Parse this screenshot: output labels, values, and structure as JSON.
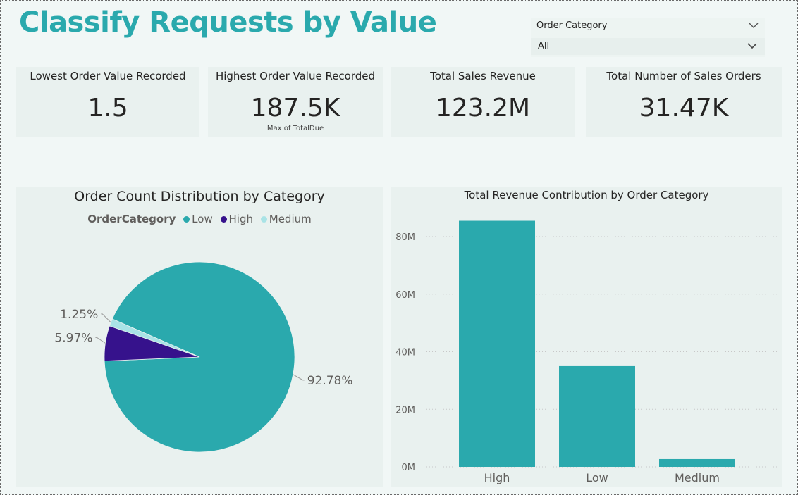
{
  "page": {
    "title": "Classify Requests by Value"
  },
  "slicer": {
    "label": "Order Category",
    "value": "All"
  },
  "cards": [
    {
      "label": "Lowest Order Value Recorded",
      "value": "1.5",
      "sub": ""
    },
    {
      "label": "Highest Order Value Recorded",
      "value": "187.5K",
      "sub": "Max of TotalDue"
    },
    {
      "label": "Total Sales Revenue",
      "value": "123.2M",
      "sub": ""
    },
    {
      "label": "Total Number of Sales Orders",
      "value": "31.47K",
      "sub": ""
    }
  ],
  "colors": {
    "accent": "#2aa9ad",
    "low": "#2aa9ad",
    "high": "#36128c",
    "medium": "#a9e3e6",
    "bar": "#2aa9ad"
  },
  "chart_data": [
    {
      "type": "pie",
      "title": "Order Count Distribution by Category",
      "legend_title": "OrderCategory",
      "legend_placement": "top",
      "categories": [
        "Low",
        "High",
        "Medium"
      ],
      "values": [
        92.78,
        5.97,
        1.25
      ],
      "labels": [
        "92.78%",
        "5.97%",
        "1.25%"
      ],
      "colors": [
        "#2aa9ad",
        "#36128c",
        "#a9e3e6"
      ]
    },
    {
      "type": "bar",
      "title": "Total Revenue Contribution by Order Category",
      "categories": [
        "High",
        "Low",
        "Medium"
      ],
      "values": [
        85.5,
        35.0,
        2.7
      ],
      "ylim": [
        0,
        80
      ],
      "yticks": [
        0,
        20,
        40,
        60,
        80
      ],
      "ytick_labels": [
        "0M",
        "20M",
        "40M",
        "60M",
        "80M"
      ],
      "xlabel": "",
      "ylabel": "",
      "grid": true
    }
  ]
}
